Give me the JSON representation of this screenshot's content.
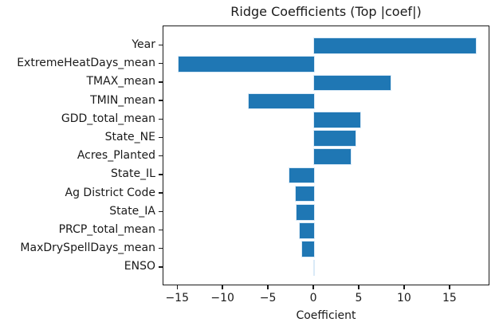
{
  "figure": {
    "background": "#ffffff",
    "text_color": "#1a1a1a",
    "spine_color": "#1a1a1a"
  },
  "chart_data": {
    "type": "bar",
    "orientation": "horizontal",
    "title": "Ridge Coefficients (Top |coef|)",
    "xlabel": "Coefficient",
    "ylabel": "",
    "categories": [
      "Year",
      "ExtremeHeatDays_mean",
      "TMAX_mean",
      "TMIN_mean",
      "GDD_total_mean",
      "State_NE",
      "Acres_Planted",
      "State_IL",
      "Ag District Code",
      "State_IA",
      "PRCP_total_mean",
      "MaxDrySpellDays_mean",
      "ENSO"
    ],
    "values": [
      17.8,
      -14.9,
      8.4,
      -7.2,
      5.1,
      4.6,
      4.0,
      -2.7,
      -2.0,
      -1.9,
      -1.6,
      -1.3,
      0.0
    ],
    "xlim": [
      -16.6,
      19.4
    ],
    "xticks": [
      -15,
      -10,
      -5,
      0,
      5,
      10,
      15
    ],
    "xtick_labels": [
      "−15",
      "−10",
      "−5",
      "0",
      "5",
      "10",
      "15"
    ],
    "bar_color": "#1f77b4",
    "grid": false,
    "legend": null
  }
}
